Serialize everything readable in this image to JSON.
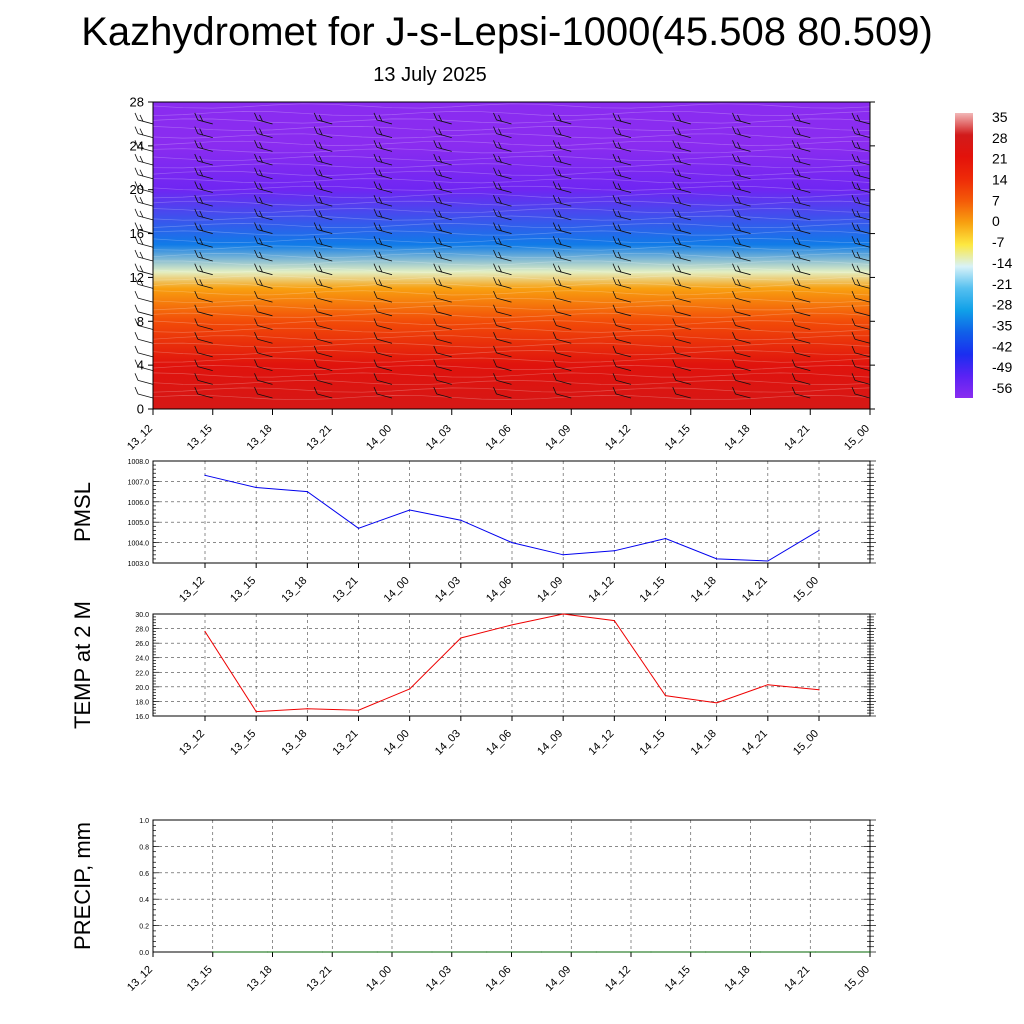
{
  "title": "Kazhydromet for J-s-Lepsi-1000(45.508 80.509)",
  "subtitle": "13 July 2025",
  "time_labels": [
    "13_12",
    "13_15",
    "13_18",
    "13_21",
    "14_00",
    "14_03",
    "14_06",
    "14_09",
    "14_12",
    "14_15",
    "14_18",
    "14_21",
    "15_00"
  ],
  "chart_data": [
    {
      "id": "profile",
      "type": "heatmap",
      "title": "",
      "xlabel": "",
      "ylabel": "",
      "x": [
        "13_12",
        "13_15",
        "13_18",
        "13_21",
        "14_00",
        "14_03",
        "14_06",
        "14_09",
        "14_12",
        "14_15",
        "14_18",
        "14_21",
        "15_00"
      ],
      "yticks": [
        "0",
        "4",
        "8",
        "12",
        "16",
        "20",
        "24",
        "28"
      ],
      "ylim": [
        0,
        28
      ],
      "colorbar": {
        "labels": [
          "35",
          "28",
          "21",
          "14",
          "7",
          "0",
          "-7",
          "-14",
          "-21",
          "-28",
          "-35",
          "-42",
          "-49",
          "-56"
        ],
        "colors": [
          "#f2b8b8",
          "#d11b1b",
          "#e3120b",
          "#ee2a08",
          "#f45a08",
          "#f8a010",
          "#fde840",
          "#d8f2f8",
          "#55c0f0",
          "#10a0e8",
          "#1060e8",
          "#1a2ef0",
          "#5a22f4",
          "#8a2cf0"
        ]
      },
      "temperature_by_height": [
        {
          "height": 0,
          "value": 26
        },
        {
          "height": 4,
          "value": 22
        },
        {
          "height": 8,
          "value": 9
        },
        {
          "height": 11,
          "value": 0
        },
        {
          "height": 12.5,
          "value": -12
        },
        {
          "height": 15,
          "value": -32
        },
        {
          "height": 20,
          "value": -52
        },
        {
          "height": 24,
          "value": -58
        },
        {
          "height": 28,
          "value": -60
        }
      ],
      "grid": false
    },
    {
      "id": "pmsl",
      "type": "line",
      "title": "",
      "xlabel": "",
      "ylabel": "PMSL",
      "x": [
        "13_12",
        "13_15",
        "13_18",
        "13_21",
        "14_00",
        "14_03",
        "14_06",
        "14_09",
        "14_12",
        "14_15",
        "14_18",
        "14_21",
        "15_00"
      ],
      "series": [
        {
          "values": [
            1007.3,
            1006.7,
            1006.5,
            1004.7,
            1005.6,
            1005.1,
            1004.0,
            1003.4,
            1003.6,
            1004.2,
            1003.2,
            1003.1,
            1004.6
          ],
          "color": "#0000ee"
        }
      ],
      "yticks": [
        "1003.0",
        "1004.0",
        "1005.0",
        "1006.0",
        "1007.0",
        "1008.0"
      ],
      "ylim": [
        1003.0,
        1008.0
      ],
      "grid": true
    },
    {
      "id": "temp2m",
      "type": "line",
      "title": "",
      "xlabel": "",
      "ylabel": "TEMP at 2 M",
      "x": [
        "13_12",
        "13_15",
        "13_18",
        "13_21",
        "14_00",
        "14_03",
        "14_06",
        "14_09",
        "14_12",
        "14_15",
        "14_18",
        "14_21",
        "15_00"
      ],
      "series": [
        {
          "values": [
            27.6,
            16.6,
            17.0,
            16.8,
            19.7,
            26.7,
            28.5,
            30.0,
            29.1,
            18.8,
            17.8,
            20.3,
            19.6
          ],
          "color": "#ee0000"
        }
      ],
      "yticks": [
        "16.0",
        "18.0",
        "20.0",
        "22.0",
        "24.0",
        "26.0",
        "28.0",
        "30.0"
      ],
      "ylim": [
        16.0,
        30.0
      ],
      "grid": true
    },
    {
      "id": "precip",
      "type": "line",
      "title": "",
      "xlabel": "",
      "ylabel": "PRECIP, mm",
      "x": [
        "13_12",
        "13_15",
        "13_18",
        "13_21",
        "14_00",
        "14_03",
        "14_06",
        "14_09",
        "14_12",
        "14_15",
        "14_18",
        "14_21",
        "15_00"
      ],
      "series": [
        {
          "values": [
            0,
            0,
            0,
            0,
            0,
            0,
            0,
            0,
            0,
            0,
            0,
            0,
            0
          ],
          "color": "#006400"
        }
      ],
      "yticks": [
        "0.0",
        "0.2",
        "0.4",
        "0.6",
        "0.8",
        "1.0"
      ],
      "ylim": [
        0,
        1.0
      ],
      "grid": true
    }
  ]
}
